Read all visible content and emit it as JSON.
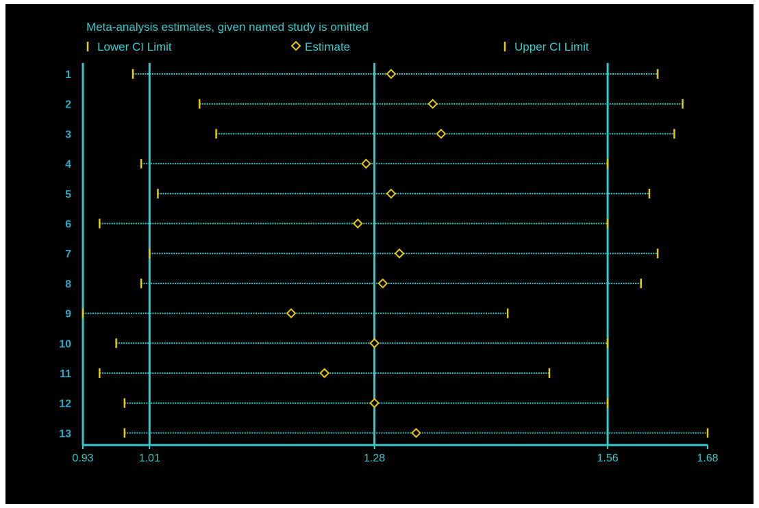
{
  "colors": {
    "background": "#000000",
    "axis": "#33cccc",
    "ci_line": "#33cccc",
    "marker": "#e6cc00",
    "study_label": "#2aa8c8"
  },
  "chart_data": {
    "type": "forest",
    "title": "Meta-analysis estimates, given named study is omitted",
    "legend": {
      "placement": "top",
      "items": [
        {
          "label": "Lower CI Limit",
          "symbol": "tick"
        },
        {
          "label": "Estimate",
          "symbol": "diamond"
        },
        {
          "label": "Upper CI Limit",
          "symbol": "tick"
        }
      ]
    },
    "x_ticks": [
      "0.93",
      "1.01",
      "1.28",
      "1.56",
      "1.68"
    ],
    "xlim": [
      0.93,
      1.68
    ],
    "reference_lines": [
      1.01,
      1.28,
      1.56
    ],
    "studies": [
      {
        "label": "1",
        "lower": 0.99,
        "estimate": 1.3,
        "upper": 1.62
      },
      {
        "label": "2",
        "lower": 1.07,
        "estimate": 1.35,
        "upper": 1.65
      },
      {
        "label": "3",
        "lower": 1.09,
        "estimate": 1.36,
        "upper": 1.64
      },
      {
        "label": "4",
        "lower": 1.0,
        "estimate": 1.27,
        "upper": 1.56
      },
      {
        "label": "5",
        "lower": 1.02,
        "estimate": 1.3,
        "upper": 1.61
      },
      {
        "label": "6",
        "lower": 0.95,
        "estimate": 1.26,
        "upper": 1.56
      },
      {
        "label": "7",
        "lower": 1.01,
        "estimate": 1.31,
        "upper": 1.62
      },
      {
        "label": "8",
        "lower": 1.0,
        "estimate": 1.29,
        "upper": 1.6
      },
      {
        "label": "9",
        "lower": 0.93,
        "estimate": 1.18,
        "upper": 1.44
      },
      {
        "label": "10",
        "lower": 0.97,
        "estimate": 1.28,
        "upper": 1.56
      },
      {
        "label": "11",
        "lower": 0.95,
        "estimate": 1.22,
        "upper": 1.49
      },
      {
        "label": "12",
        "lower": 0.98,
        "estimate": 1.28,
        "upper": 1.56
      },
      {
        "label": "13",
        "lower": 0.98,
        "estimate": 1.33,
        "upper": 1.68
      }
    ]
  }
}
